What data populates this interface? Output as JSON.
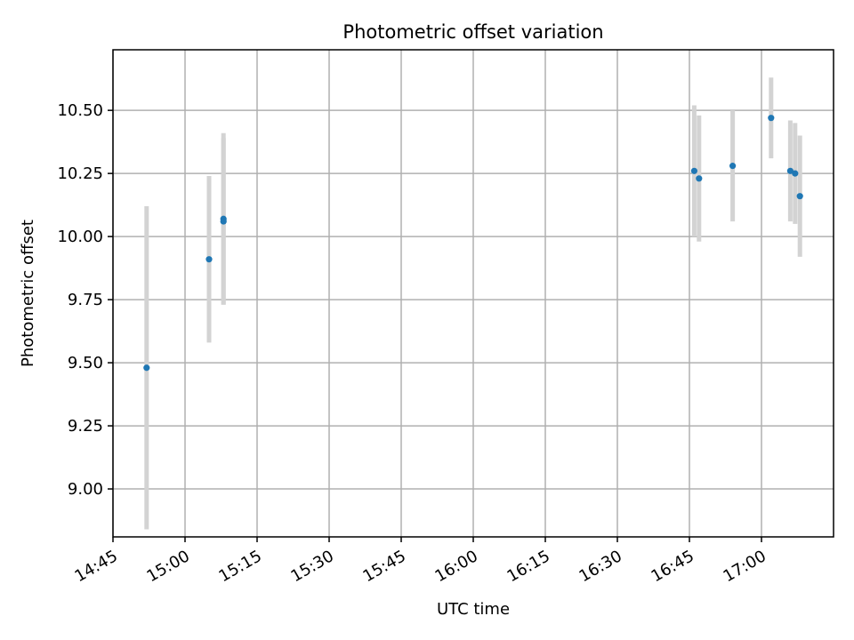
{
  "chart_data": {
    "type": "scatter",
    "title": "Photometric offset variation",
    "xlabel": "UTC time",
    "ylabel": "Photometric offset",
    "x_ticks": [
      "14:45",
      "15:00",
      "15:15",
      "15:30",
      "15:45",
      "16:00",
      "16:15",
      "16:30",
      "16:45",
      "17:00"
    ],
    "y_ticks": [
      "9.00",
      "9.25",
      "9.50",
      "9.75",
      "10.00",
      "10.25",
      "10.50"
    ],
    "xlim": [
      "14:45",
      "17:15"
    ],
    "ylim": [
      8.81,
      10.74
    ],
    "grid": true,
    "colors": {
      "point": "#1f77b4",
      "errorbar": "#d3d3d3",
      "grid": "#b0b0b0"
    },
    "points": [
      {
        "x": "14:52",
        "y": 9.48,
        "err": 0.64
      },
      {
        "x": "15:05",
        "y": 9.91,
        "err": 0.33
      },
      {
        "x": "15:08",
        "y": 10.07,
        "err": 0.34
      },
      {
        "x": "15:08",
        "y": 10.06,
        "err": 0.33
      },
      {
        "x": "16:46",
        "y": 10.26,
        "err": 0.26
      },
      {
        "x": "16:47",
        "y": 10.23,
        "err": 0.25
      },
      {
        "x": "16:54",
        "y": 10.28,
        "err": 0.22
      },
      {
        "x": "17:02",
        "y": 10.47,
        "err": 0.16
      },
      {
        "x": "17:06",
        "y": 10.26,
        "err": 0.2
      },
      {
        "x": "17:07",
        "y": 10.25,
        "err": 0.2
      },
      {
        "x": "17:08",
        "y": 10.16,
        "err": 0.24
      }
    ]
  }
}
